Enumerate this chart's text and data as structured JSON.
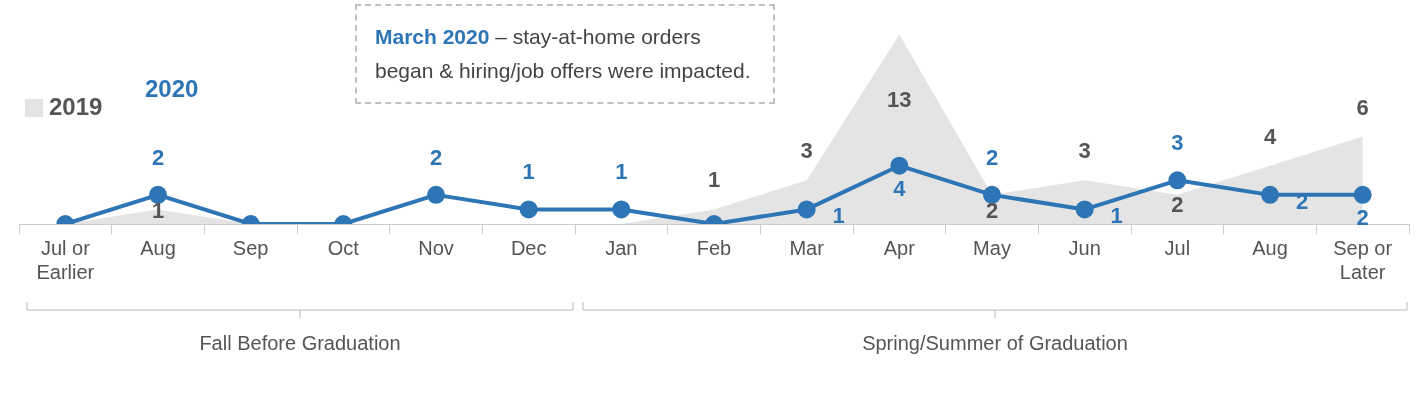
{
  "chart_data": {
    "type": "line",
    "categories": [
      "Jul or Earlier",
      "Aug",
      "Sep",
      "Oct",
      "Nov",
      "Dec",
      "Jan",
      "Feb",
      "Mar",
      "Apr",
      "May",
      "Jun",
      "Jul",
      "Aug",
      "Sep or Later"
    ],
    "series": [
      {
        "name": "2019",
        "type": "area",
        "color": "#e4e4e4",
        "marker": "none",
        "values": [
          0,
          1,
          0,
          0,
          0,
          0,
          0,
          1,
          3,
          13,
          2,
          3,
          2,
          4,
          6
        ],
        "value_labels": [
          null,
          "1",
          null,
          null,
          null,
          null,
          null,
          "1",
          "3",
          "13",
          "2",
          "3",
          "2",
          "4",
          "6"
        ]
      },
      {
        "name": "2020",
        "color": "#2e75b6",
        "marker": "circle",
        "values": [
          0,
          2,
          0,
          0,
          2,
          1,
          1,
          0,
          1,
          4,
          2,
          1,
          3,
          2,
          2
        ],
        "value_labels": [
          null,
          "2",
          null,
          null,
          "2",
          "1",
          "1",
          null,
          "1",
          "4",
          "2",
          "1",
          "3",
          "2",
          "2"
        ]
      }
    ],
    "tick_labels": "x",
    "grid": false,
    "legend": "top left",
    "line_style": "solid",
    "annotations": [
      "March 2020 – stay-at-home orders began & hiring/job offers were impacted.",
      "Fall Before Graduation",
      "Spring/Summer of Graduation"
    ]
  }
}
